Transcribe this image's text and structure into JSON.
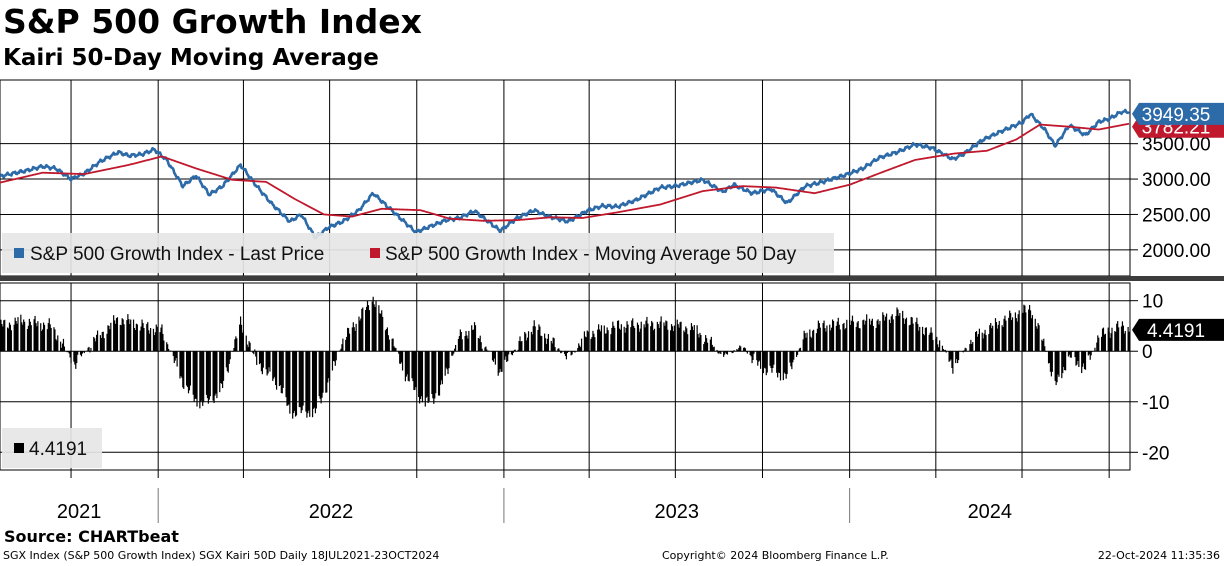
{
  "header": {
    "title": "S&P 500 Growth Index",
    "subtitle": "Kairi 50-Day Moving Average"
  },
  "footer": {
    "source": "Source: CHARTbeat",
    "description": "SGX Index (S&P 500 Growth Index) SGX Kairi 50D  Daily 18JUL2021-23OCT2024",
    "copyright": "Copyright© 2024 Bloomberg Finance L.P.",
    "timestamp": "22-Oct-2024 11:35:36"
  },
  "colors": {
    "price": "#2d6aa8",
    "moving_average": "#c0182d",
    "kairi_bars": "#000000",
    "grid": "#000000",
    "legend_bg": "#e6e6e6"
  },
  "chart_data": [
    {
      "type": "line",
      "panel": "upper",
      "x_range": [
        "2021-07-18",
        "2024-10-23"
      ],
      "x_year_labels": [
        "2021",
        "2022",
        "2023",
        "2024"
      ],
      "y_ticks": [
        2000,
        2500,
        3000,
        3500
      ],
      "y_tick_labels": [
        "2000.00",
        "2500.00",
        "3000.00",
        "3500.00"
      ],
      "ylim": [
        1630,
        4400
      ],
      "grid": true,
      "legend_position": "bottom-left",
      "series": [
        {
          "name": "S&P 500 Growth Index - Last Price",
          "color": "#2d6aa8",
          "last_value_label": "3949.35",
          "points": [
            [
              "2021-07-18",
              3040
            ],
            [
              "2021-08-01",
              3080
            ],
            [
              "2021-08-15",
              3120
            ],
            [
              "2021-09-01",
              3180
            ],
            [
              "2021-09-15",
              3150
            ],
            [
              "2021-10-01",
              3000
            ],
            [
              "2021-10-15",
              3080
            ],
            [
              "2021-11-01",
              3250
            ],
            [
              "2021-11-20",
              3380
            ],
            [
              "2021-12-01",
              3330
            ],
            [
              "2021-12-15",
              3350
            ],
            [
              "2021-12-28",
              3420
            ],
            [
              "2022-01-10",
              3270
            ],
            [
              "2022-01-27",
              2900
            ],
            [
              "2022-02-10",
              3050
            ],
            [
              "2022-02-24",
              2780
            ],
            [
              "2022-03-10",
              2900
            ],
            [
              "2022-03-29",
              3200
            ],
            [
              "2022-04-15",
              2900
            ],
            [
              "2022-05-01",
              2650
            ],
            [
              "2022-05-20",
              2400
            ],
            [
              "2022-06-01",
              2500
            ],
            [
              "2022-06-16",
              2170
            ],
            [
              "2022-06-30",
              2320
            ],
            [
              "2022-07-15",
              2400
            ],
            [
              "2022-08-01",
              2560
            ],
            [
              "2022-08-16",
              2800
            ],
            [
              "2022-09-01",
              2600
            ],
            [
              "2022-09-30",
              2250
            ],
            [
              "2022-10-15",
              2330
            ],
            [
              "2022-11-01",
              2420
            ],
            [
              "2022-11-15",
              2450
            ],
            [
              "2022-12-01",
              2550
            ],
            [
              "2022-12-28",
              2270
            ],
            [
              "2023-01-15",
              2450
            ],
            [
              "2023-02-02",
              2560
            ],
            [
              "2023-02-15",
              2480
            ],
            [
              "2023-03-10",
              2400
            ],
            [
              "2023-03-31",
              2560
            ],
            [
              "2023-04-15",
              2620
            ],
            [
              "2023-05-01",
              2610
            ],
            [
              "2023-05-20",
              2700
            ],
            [
              "2023-06-15",
              2880
            ],
            [
              "2023-07-01",
              2900
            ],
            [
              "2023-07-30",
              2990
            ],
            [
              "2023-08-20",
              2820
            ],
            [
              "2023-09-01",
              2920
            ],
            [
              "2023-09-20",
              2800
            ],
            [
              "2023-10-10",
              2860
            ],
            [
              "2023-10-27",
              2660
            ],
            [
              "2023-11-15",
              2900
            ],
            [
              "2023-12-01",
              2950
            ],
            [
              "2023-12-28",
              3060
            ],
            [
              "2024-01-15",
              3150
            ],
            [
              "2024-02-01",
              3300
            ],
            [
              "2024-02-20",
              3380
            ],
            [
              "2024-03-10",
              3490
            ],
            [
              "2024-03-28",
              3440
            ],
            [
              "2024-04-19",
              3280
            ],
            [
              "2024-05-01",
              3360
            ],
            [
              "2024-05-20",
              3550
            ],
            [
              "2024-06-10",
              3680
            ],
            [
              "2024-07-01",
              3800
            ],
            [
              "2024-07-10",
              3920
            ],
            [
              "2024-07-25",
              3700
            ],
            [
              "2024-08-05",
              3470
            ],
            [
              "2024-08-20",
              3760
            ],
            [
              "2024-09-06",
              3620
            ],
            [
              "2024-09-20",
              3810
            ],
            [
              "2024-10-01",
              3850
            ],
            [
              "2024-10-14",
              3950
            ],
            [
              "2024-10-22",
              3949.35
            ]
          ]
        },
        {
          "name": "S&P 500 Growth Index - Moving Average 50 Day",
          "color": "#c0182d",
          "last_value_label": "3782.21",
          "points": [
            [
              "2021-07-18",
              2950
            ],
            [
              "2021-09-01",
              3090
            ],
            [
              "2021-10-15",
              3070
            ],
            [
              "2021-12-01",
              3200
            ],
            [
              "2022-01-05",
              3320
            ],
            [
              "2022-02-10",
              3150
            ],
            [
              "2022-03-20",
              2990
            ],
            [
              "2022-04-25",
              2960
            ],
            [
              "2022-05-25",
              2720
            ],
            [
              "2022-06-25",
              2500
            ],
            [
              "2022-07-25",
              2470
            ],
            [
              "2022-08-25",
              2580
            ],
            [
              "2022-10-05",
              2560
            ],
            [
              "2022-11-05",
              2440
            ],
            [
              "2022-12-10",
              2410
            ],
            [
              "2023-01-15",
              2420
            ],
            [
              "2023-02-20",
              2460
            ],
            [
              "2023-03-25",
              2450
            ],
            [
              "2023-05-01",
              2530
            ],
            [
              "2023-06-15",
              2640
            ],
            [
              "2023-07-30",
              2830
            ],
            [
              "2023-09-10",
              2900
            ],
            [
              "2023-10-15",
              2880
            ],
            [
              "2023-11-25",
              2800
            ],
            [
              "2024-01-01",
              2920
            ],
            [
              "2024-02-05",
              3100
            ],
            [
              "2024-03-10",
              3270
            ],
            [
              "2024-04-20",
              3360
            ],
            [
              "2024-05-25",
              3400
            ],
            [
              "2024-06-25",
              3560
            ],
            [
              "2024-07-20",
              3770
            ],
            [
              "2024-08-20",
              3740
            ],
            [
              "2024-09-20",
              3700
            ],
            [
              "2024-10-22",
              3782.21
            ]
          ]
        }
      ]
    },
    {
      "type": "bar",
      "panel": "lower",
      "x_range": [
        "2021-07-18",
        "2024-10-23"
      ],
      "y_ticks": [
        10,
        0,
        -10,
        -20
      ],
      "y_tick_labels": [
        "10",
        "0",
        "-10",
        "-20"
      ],
      "ylim": [
        -23.5,
        13.5
      ],
      "grid": true,
      "legend_position": "bottom-left",
      "series": [
        {
          "name": "",
          "color": "#000000",
          "legend_label": "4.4191",
          "last_value_label": "4.4191",
          "points": [
            [
              "2021-07-18",
              5
            ],
            [
              "2021-08-10",
              6
            ],
            [
              "2021-09-10",
              5
            ],
            [
              "2021-10-05",
              -2.5
            ],
            [
              "2021-10-25",
              2
            ],
            [
              "2021-11-20",
              6.5
            ],
            [
              "2021-12-15",
              5
            ],
            [
              "2022-01-05",
              4
            ],
            [
              "2022-01-27",
              -6
            ],
            [
              "2022-02-10",
              -10
            ],
            [
              "2022-02-24",
              -10
            ],
            [
              "2022-03-10",
              -7
            ],
            [
              "2022-03-29",
              5.5
            ],
            [
              "2022-04-15",
              -2
            ],
            [
              "2022-05-10",
              -7
            ],
            [
              "2022-05-20",
              -12
            ],
            [
              "2022-06-16",
              -12
            ],
            [
              "2022-06-30",
              -6
            ],
            [
              "2022-07-15",
              2
            ],
            [
              "2022-08-16",
              10.5
            ],
            [
              "2022-09-01",
              4
            ],
            [
              "2022-09-20",
              -5
            ],
            [
              "2022-10-10",
              -10.5
            ],
            [
              "2022-10-25",
              -8
            ],
            [
              "2022-11-15",
              3
            ],
            [
              "2022-12-01",
              4.5
            ],
            [
              "2022-12-28",
              -4
            ],
            [
              "2023-01-15",
              1
            ],
            [
              "2023-02-02",
              5
            ],
            [
              "2023-02-20",
              2
            ],
            [
              "2023-03-10",
              -1.5
            ],
            [
              "2023-03-31",
              3.5
            ],
            [
              "2023-05-01",
              5
            ],
            [
              "2023-06-15",
              5.5
            ],
            [
              "2023-07-20",
              4.5
            ],
            [
              "2023-08-05",
              2
            ],
            [
              "2023-08-20",
              -1
            ],
            [
              "2023-09-10",
              1
            ],
            [
              "2023-09-28",
              -3
            ],
            [
              "2023-10-27",
              -5
            ],
            [
              "2023-11-15",
              3
            ],
            [
              "2023-12-01",
              5
            ],
            [
              "2023-12-28",
              5.5
            ],
            [
              "2024-02-01",
              6
            ],
            [
              "2024-02-20",
              7.5
            ],
            [
              "2024-03-15",
              5
            ],
            [
              "2024-04-05",
              2
            ],
            [
              "2024-04-19",
              -3
            ],
            [
              "2024-05-10",
              2.5
            ],
            [
              "2024-06-10",
              6
            ],
            [
              "2024-07-10",
              8.5
            ],
            [
              "2024-07-25",
              1
            ],
            [
              "2024-08-05",
              -7
            ],
            [
              "2024-08-20",
              -1
            ],
            [
              "2024-09-06",
              -3.5
            ],
            [
              "2024-09-20",
              3
            ],
            [
              "2024-10-01",
              4
            ],
            [
              "2024-10-14",
              5
            ],
            [
              "2024-10-22",
              4.4191
            ]
          ]
        }
      ]
    }
  ]
}
